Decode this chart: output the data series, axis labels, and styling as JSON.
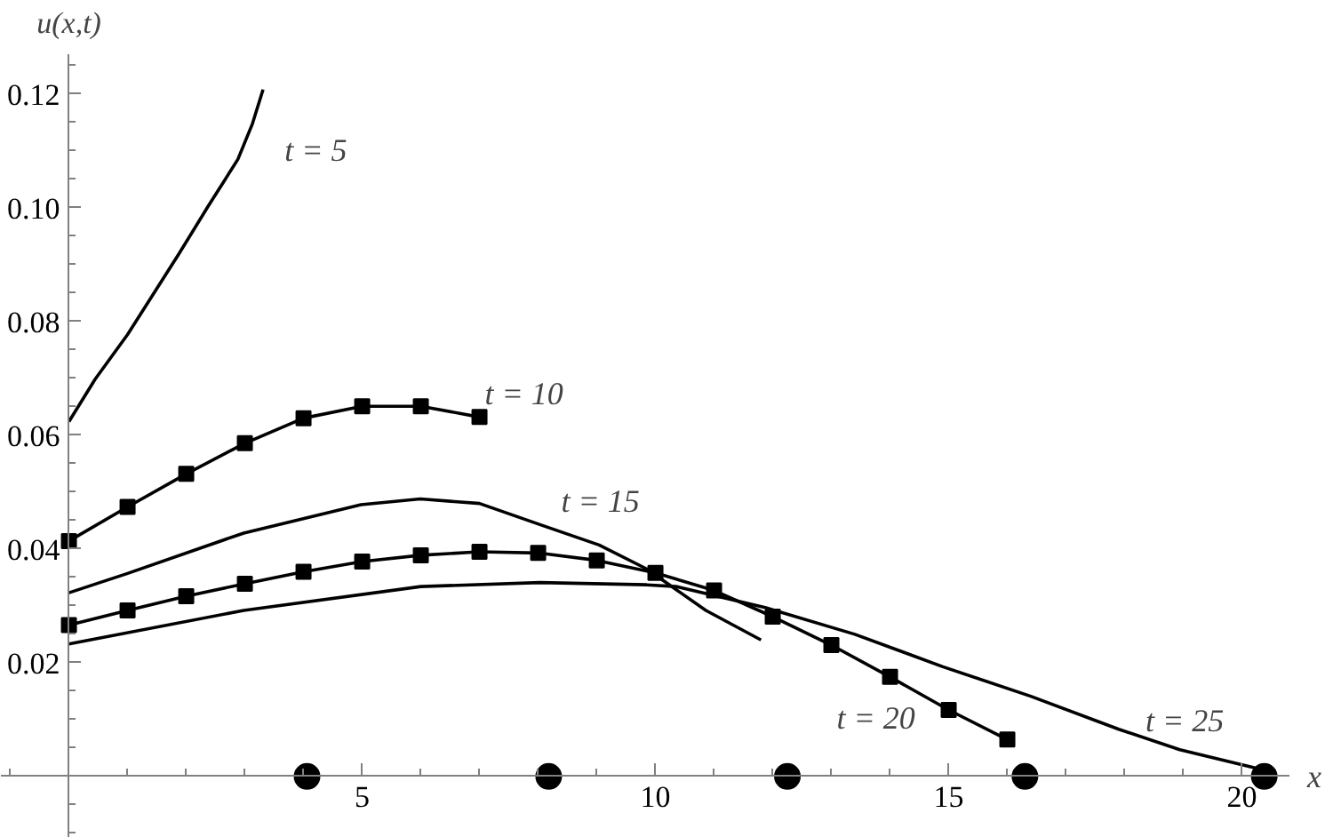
{
  "chart_data": {
    "type": "line",
    "xlabel": "x",
    "ylabel": "u(x,t)",
    "xlim": [
      -1.16,
      20.81
    ],
    "ylim": [
      -0.0108,
      0.127
    ],
    "xticks": [
      5,
      10,
      15,
      20
    ],
    "yticks": [
      {
        "value": 0.02,
        "label": "0.02"
      },
      {
        "value": 0.04,
        "label": "0.04"
      },
      {
        "value": 0.06,
        "label": "0.06"
      },
      {
        "value": 0.08,
        "label": "0.08"
      },
      {
        "value": 0.1,
        "label": "0.10"
      },
      {
        "value": 0.12,
        "label": "0.12"
      }
    ],
    "grid": false,
    "series": [
      {
        "marker": "none",
        "color": "#000000",
        "x": [
          0,
          0.45,
          1,
          1.87,
          2.37,
          2.88,
          3.13,
          3.31
        ],
        "values": [
          0.0624,
          0.0699,
          0.0777,
          0.0918,
          0.1002,
          0.1085,
          0.1148,
          0.1208
        ]
      },
      {
        "marker": "square",
        "color": "#000000",
        "x": [
          0,
          1,
          2,
          3,
          4,
          5,
          6,
          7
        ],
        "values": [
          0.0414,
          0.0474,
          0.0532,
          0.0586,
          0.063,
          0.0651,
          0.0651,
          0.0632
        ]
      },
      {
        "marker": "none",
        "color": "#000000",
        "x": [
          0,
          1,
          2.98,
          4.98,
          5.99,
          7,
          8.03,
          9.04,
          9.85,
          10.86,
          11.8
        ],
        "values": [
          0.0323,
          0.0357,
          0.0428,
          0.0478,
          0.0488,
          0.048,
          0.0443,
          0.0407,
          0.0365,
          0.0292,
          0.024
        ]
      },
      {
        "marker": "square",
        "color": "#000000",
        "x": [
          0,
          1,
          2,
          3,
          4,
          5,
          6,
          7,
          8,
          9,
          10,
          11,
          12,
          13,
          14,
          15,
          16
        ],
        "values": [
          0.0266,
          0.0292,
          0.0317,
          0.0339,
          0.036,
          0.0378,
          0.0389,
          0.0395,
          0.0393,
          0.038,
          0.0358,
          0.0327,
          0.0281,
          0.0231,
          0.0175,
          0.0117,
          0.0065
        ]
      },
      {
        "marker": "none",
        "color": "#000000",
        "x": [
          0,
          2.98,
          6,
          8.03,
          9.85,
          10.35,
          11.87,
          13.4,
          14.9,
          16.4,
          17.9,
          18.94,
          20.35
        ],
        "values": [
          0.0233,
          0.0292,
          0.0334,
          0.0341,
          0.0337,
          0.0334,
          0.0297,
          0.025,
          0.0193,
          0.0141,
          0.0083,
          0.0047,
          0.0012
        ]
      },
      {
        "type": "scatter",
        "marker": "circle",
        "color": "#000000",
        "x": [
          4.06,
          8.18,
          12.25,
          16.3,
          20.38
        ],
        "values": [
          0,
          0,
          0,
          0,
          0
        ]
      }
    ],
    "annotations": [
      {
        "text": "t = 5",
        "x": 3.13,
        "y": 0.1148
      },
      {
        "text": "t = 10",
        "x": 7,
        "y": 0.0632
      },
      {
        "text": "t = 15",
        "x": 8.03,
        "y": 0.0443
      },
      {
        "text": "t = 20",
        "x": 14,
        "y": 0.0175
      },
      {
        "text": "t = 25",
        "x": 17.9,
        "y": 0.0083
      }
    ]
  }
}
